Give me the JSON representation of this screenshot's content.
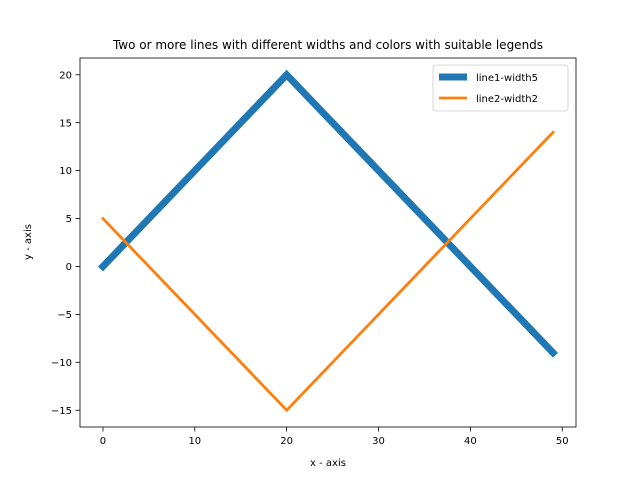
{
  "chart_data": {
    "type": "line",
    "title": "Two or more lines with different widths and colors with suitable legends",
    "xlabel": "x - axis",
    "ylabel": "y - axis",
    "xlim": [
      -2.5,
      51.5
    ],
    "ylim": [
      -16.75,
      21.75
    ],
    "xticks": [
      0,
      10,
      20,
      30,
      40,
      50
    ],
    "yticks": [
      -15,
      -10,
      -5,
      0,
      5,
      10,
      15,
      20
    ],
    "grid": false,
    "legend_position": "top-right",
    "series": [
      {
        "name": "line1-width5",
        "color": "#1f77b4",
        "line_width": 5,
        "x": [
          0,
          20,
          49
        ],
        "y": [
          0,
          20,
          -9
        ]
      },
      {
        "name": "line2-width2",
        "color": "#ff7f0e",
        "line_width": 2,
        "x": [
          0,
          20,
          49
        ],
        "y": [
          5,
          -15,
          14
        ]
      }
    ]
  }
}
